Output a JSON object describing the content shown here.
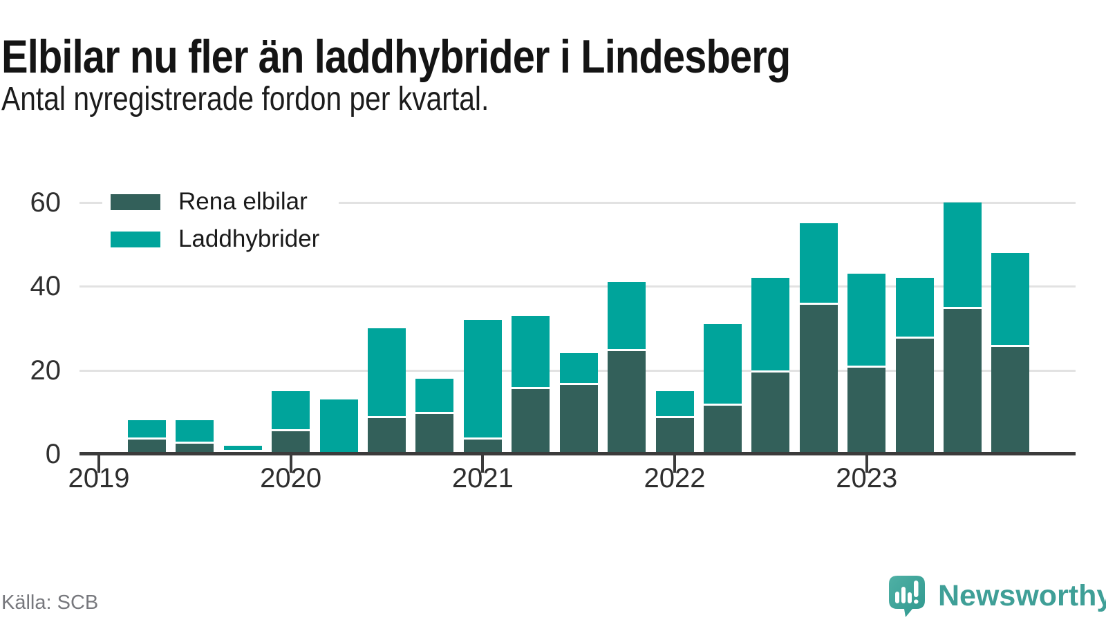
{
  "header": {
    "title": "Elbilar nu fler än laddhybrider i Lindesberg",
    "subtitle": "Antal nyregistrerade fordon per kvartal."
  },
  "chart_data": {
    "type": "bar",
    "stacked": true,
    "title": "Elbilar nu fler än laddhybrider i Lindesberg",
    "subtitle": "Antal nyregistrerade fordon per kvartal.",
    "x": [
      "2019 Q1",
      "2019 Q2",
      "2019 Q3",
      "2019 Q4",
      "2020 Q1",
      "2020 Q2",
      "2020 Q3",
      "2020 Q4",
      "2021 Q1",
      "2021 Q2",
      "2021 Q3",
      "2021 Q4",
      "2022 Q1",
      "2022 Q2",
      "2022 Q3",
      "2022 Q4",
      "2023 Q1",
      "2023 Q2",
      "2023 Q3",
      "2023 Q4"
    ],
    "series": [
      {
        "name": "Rena elbilar",
        "color": "#33605a",
        "values": [
          0,
          4,
          3,
          1,
          6,
          0,
          9,
          10,
          4,
          16,
          17,
          25,
          9,
          12,
          20,
          36,
          21,
          28,
          35,
          26
        ]
      },
      {
        "name": "Laddhybrider",
        "color": "#00a49b",
        "values": [
          0,
          4,
          5,
          1,
          9,
          13,
          21,
          8,
          28,
          17,
          7,
          16,
          6,
          19,
          22,
          19,
          22,
          14,
          25,
          22
        ]
      }
    ],
    "ylim": [
      0,
      60
    ],
    "yticks": [
      0,
      20,
      40,
      60
    ],
    "xticks_years": [
      "2019",
      "2020",
      "2021",
      "2022",
      "2023"
    ],
    "grid": true,
    "legend_position": "top-left"
  },
  "footer": {
    "source": "Källa: SCB",
    "brand": "Newsworthy",
    "brand_icon": "newsworthy-speech-bubble-barchart-icon"
  },
  "colors": {
    "electric": "#33605a",
    "hybrid": "#00a49b",
    "axis": "#3b3b3b",
    "grid": "#e2e2e2",
    "title_text": "#141414",
    "muted_text": "#77787d",
    "brand_teal": "#3f9f97"
  }
}
